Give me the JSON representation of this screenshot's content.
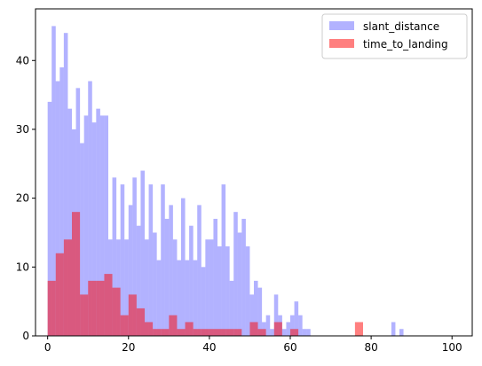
{
  "chart_data": {
    "type": "bar",
    "subtype": "overlapping histogram",
    "xlim": [
      -3,
      105
    ],
    "ylim": [
      0,
      47.5
    ],
    "xticks": [
      0,
      20,
      40,
      60,
      80,
      100
    ],
    "yticks": [
      0,
      10,
      20,
      30,
      40
    ],
    "grid": false,
    "legend_position": "top-right",
    "series": [
      {
        "name": "slant_distance",
        "color": "#0000ff",
        "alpha": 0.3,
        "bin_width": 1,
        "bins": [
          [
            0,
            34
          ],
          [
            1,
            45
          ],
          [
            2,
            37
          ],
          [
            3,
            39
          ],
          [
            4,
            44
          ],
          [
            5,
            33
          ],
          [
            6,
            30
          ],
          [
            7,
            36
          ],
          [
            8,
            28
          ],
          [
            9,
            32
          ],
          [
            10,
            37
          ],
          [
            11,
            31
          ],
          [
            12,
            33
          ],
          [
            13,
            32
          ],
          [
            14,
            32
          ],
          [
            15,
            14
          ],
          [
            16,
            23
          ],
          [
            17,
            14
          ],
          [
            18,
            22
          ],
          [
            19,
            14
          ],
          [
            20,
            19
          ],
          [
            21,
            23
          ],
          [
            22,
            16
          ],
          [
            23,
            24
          ],
          [
            24,
            14
          ],
          [
            25,
            22
          ],
          [
            26,
            15
          ],
          [
            27,
            11
          ],
          [
            28,
            22
          ],
          [
            29,
            17
          ],
          [
            30,
            19
          ],
          [
            31,
            14
          ],
          [
            32,
            11
          ],
          [
            33,
            20
          ],
          [
            34,
            11
          ],
          [
            35,
            16
          ],
          [
            36,
            11
          ],
          [
            37,
            19
          ],
          [
            38,
            10
          ],
          [
            39,
            14
          ],
          [
            40,
            14
          ],
          [
            41,
            17
          ],
          [
            42,
            13
          ],
          [
            43,
            22
          ],
          [
            44,
            13
          ],
          [
            45,
            8
          ],
          [
            46,
            18
          ],
          [
            47,
            15
          ],
          [
            48,
            17
          ],
          [
            49,
            13
          ],
          [
            50,
            6
          ],
          [
            51,
            8
          ],
          [
            52,
            7
          ],
          [
            53,
            2
          ],
          [
            54,
            3
          ],
          [
            55,
            1
          ],
          [
            56,
            6
          ],
          [
            57,
            3
          ],
          [
            58,
            1
          ],
          [
            59,
            2
          ],
          [
            60,
            3
          ],
          [
            61,
            5
          ],
          [
            62,
            3
          ],
          [
            63,
            1
          ],
          [
            64,
            1
          ],
          [
            85,
            2
          ],
          [
            87,
            1
          ]
        ]
      },
      {
        "name": "time_to_landing",
        "color": "#ff0000",
        "alpha": 0.5,
        "bin_width": 2,
        "bins": [
          [
            0,
            8
          ],
          [
            2,
            12
          ],
          [
            4,
            14
          ],
          [
            6,
            18
          ],
          [
            8,
            6
          ],
          [
            10,
            8
          ],
          [
            12,
            8
          ],
          [
            14,
            9
          ],
          [
            16,
            7
          ],
          [
            18,
            3
          ],
          [
            20,
            6
          ],
          [
            22,
            4
          ],
          [
            24,
            2
          ],
          [
            26,
            1
          ],
          [
            28,
            1
          ],
          [
            30,
            3
          ],
          [
            32,
            1
          ],
          [
            34,
            2
          ],
          [
            36,
            1
          ],
          [
            38,
            1
          ],
          [
            40,
            1
          ],
          [
            42,
            1
          ],
          [
            44,
            1
          ],
          [
            46,
            1
          ],
          [
            50,
            2
          ],
          [
            52,
            1
          ],
          [
            56,
            2
          ],
          [
            60,
            1
          ],
          [
            76,
            2
          ]
        ]
      }
    ]
  }
}
